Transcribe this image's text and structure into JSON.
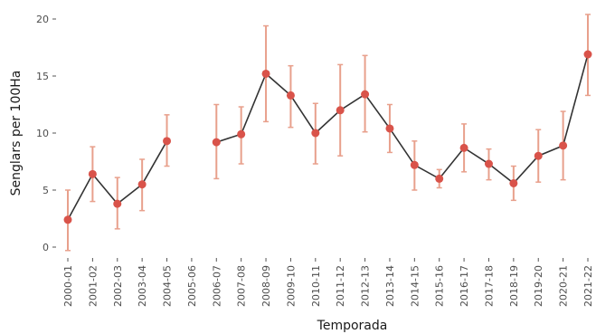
{
  "chart_data": {
    "type": "line",
    "title": "",
    "xlabel": "Temporada",
    "ylabel": "Senglars per 100Ha",
    "ylim": [
      -1,
      21
    ],
    "yticks": [
      0,
      5,
      10,
      15,
      20
    ],
    "grid": false,
    "categories": [
      "2000-01",
      "2001-02",
      "2002-03",
      "2003-04",
      "2004-05",
      "2005-06",
      "2006-07",
      "2007-08",
      "2008-09",
      "2009-10",
      "2010-11",
      "2011-12",
      "2012-13",
      "2013-14",
      "2014-15",
      "2015-16",
      "2016-17",
      "2017-18",
      "2018-19",
      "2019-20",
      "2020-21",
      "2021-22"
    ],
    "series": [
      {
        "values": [
          2.4,
          6.4,
          3.8,
          5.5,
          9.3,
          null,
          9.2,
          9.9,
          15.2,
          13.3,
          10.0,
          12.0,
          13.4,
          10.4,
          7.2,
          6.0,
          8.7,
          7.3,
          5.6,
          8.0,
          8.9,
          16.9
        ],
        "lower": [
          -0.3,
          4.0,
          1.6,
          3.2,
          7.1,
          null,
          6.0,
          7.3,
          11.0,
          10.5,
          7.3,
          8.0,
          10.1,
          8.3,
          5.0,
          5.2,
          6.6,
          5.9,
          4.1,
          5.7,
          5.9,
          13.3
        ],
        "upper": [
          5.0,
          8.8,
          6.1,
          7.7,
          11.6,
          null,
          12.5,
          12.3,
          19.4,
          15.9,
          12.6,
          16.0,
          16.8,
          12.5,
          9.3,
          6.8,
          10.8,
          8.6,
          7.1,
          10.3,
          11.9,
          20.4
        ],
        "color": "#d9534a",
        "line_color": "#333333",
        "error_color": "#e8a08c"
      }
    ]
  }
}
